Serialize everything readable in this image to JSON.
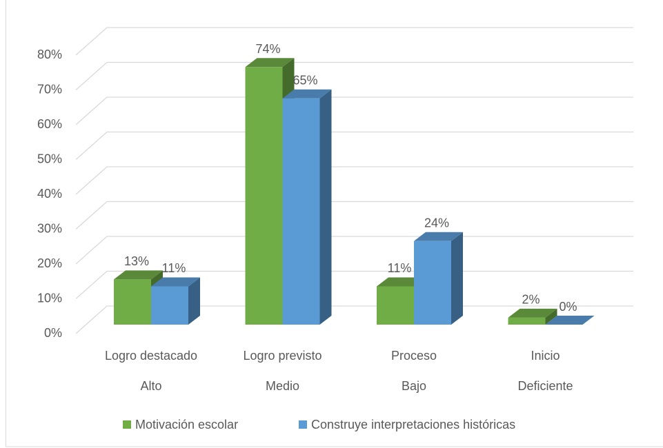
{
  "chart_data": {
    "type": "bar3d",
    "categories": [
      [
        "Logro destacado",
        "Alto"
      ],
      [
        "Logro previsto",
        "Medio"
      ],
      [
        "Proceso",
        "Bajo"
      ],
      [
        "Inicio",
        "Deficiente"
      ]
    ],
    "series": [
      {
        "name": "Motivación escolar",
        "color": "#70ad47",
        "values": [
          13,
          74,
          11,
          2
        ],
        "value_labels": [
          "13%",
          "74%",
          "11%",
          "2%"
        ]
      },
      {
        "name": "Construye interpretaciones históricas",
        "color": "#5b9bd5",
        "values": [
          11,
          65,
          24,
          0
        ],
        "value_labels": [
          "11%",
          "65%",
          "24%",
          "0%"
        ]
      }
    ],
    "ylim": [
      0,
      80
    ],
    "yticks": [
      {
        "value": 0,
        "label": "0%"
      },
      {
        "value": 10,
        "label": "10%"
      },
      {
        "value": 20,
        "label": "20%"
      },
      {
        "value": 30,
        "label": "30%"
      },
      {
        "value": 40,
        "label": "40%"
      },
      {
        "value": 50,
        "label": "50%"
      },
      {
        "value": 60,
        "label": "60%"
      },
      {
        "value": 70,
        "label": "70%"
      },
      {
        "value": 80,
        "label": "80%"
      }
    ],
    "grid": true,
    "legend": "bottom"
  }
}
